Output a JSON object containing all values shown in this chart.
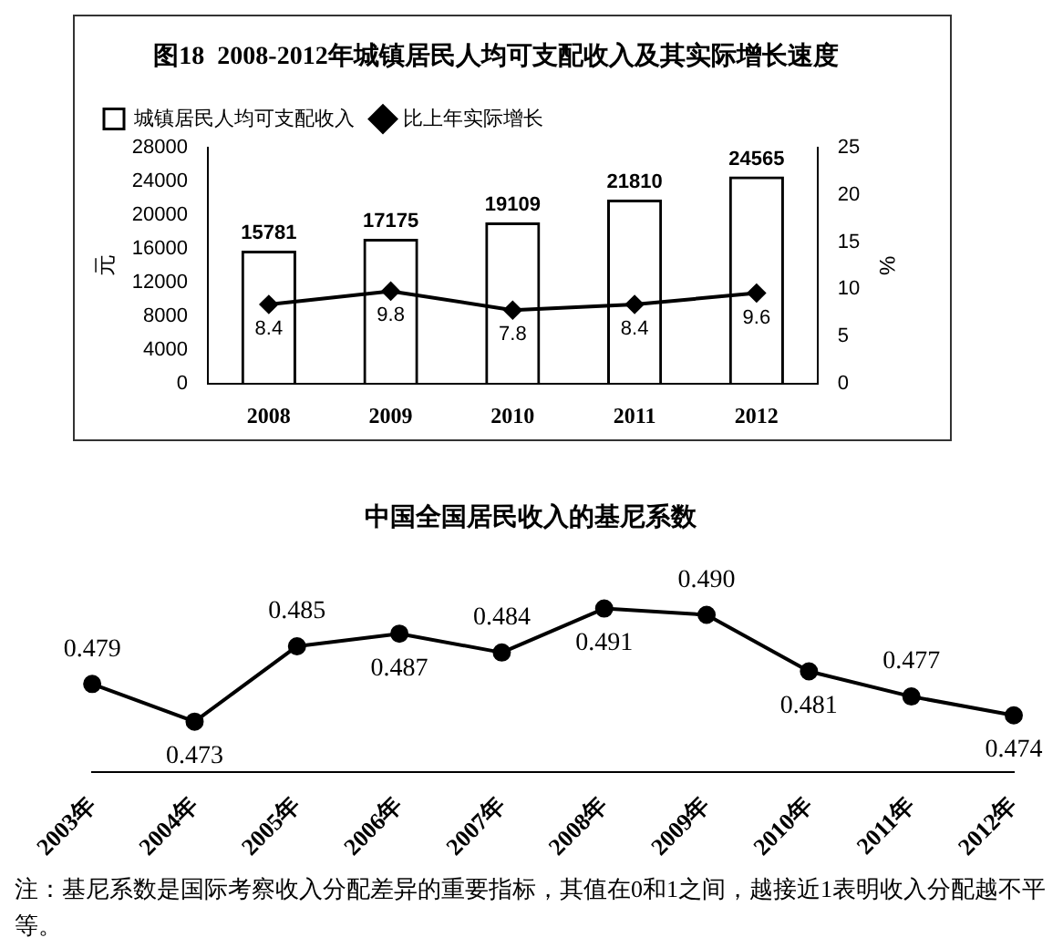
{
  "chart_data": [
    {
      "type": "bar",
      "title": "图18  2008-2012年城镇居民人均可支配收入及其实际增长速度",
      "ylabel": "元",
      "y2label": "%",
      "categories": [
        "2008",
        "2009",
        "2010",
        "2011",
        "2012"
      ],
      "series": [
        {
          "name": "城镇居民人均可支配收入",
          "color": "#000000",
          "values": [
            15781,
            17175,
            19109,
            21810,
            24565
          ]
        },
        {
          "name": "比上年实际增长",
          "type": "line",
          "axis": "y2",
          "color": "#000000",
          "values": [
            8.4,
            9.8,
            7.8,
            8.4,
            9.6
          ]
        }
      ],
      "ylim": [
        0,
        28000
      ],
      "yticks": [
        0,
        4000,
        8000,
        12000,
        16000,
        20000,
        24000,
        28000
      ],
      "y2lim": [
        0,
        25
      ],
      "y2ticks": [
        0,
        5,
        10,
        15,
        20,
        25
      ],
      "data_labels": true,
      "legend": "top left",
      "grid": false,
      "marker": "diamond"
    },
    {
      "type": "line",
      "title": "中国全国居民收入的基尼系数",
      "categories": [
        "2003年",
        "2004年",
        "2005年",
        "2006年",
        "2007年",
        "2008年",
        "2009年",
        "2010年",
        "2011年",
        "2012年"
      ],
      "series": [
        {
          "color": "#000000",
          "values": [
            0.479,
            0.473,
            0.485,
            0.487,
            0.484,
            0.491,
            0.49,
            0.481,
            0.477,
            0.474
          ],
          "value_labels": [
            "0.479",
            "0.473",
            "0.485",
            "0.487",
            "0.484",
            "0.491",
            "0.490",
            "0.481",
            "0.477",
            "0.474"
          ]
        }
      ],
      "tick_labels": "x",
      "grid": false,
      "marker": "circle",
      "annotations": [
        "注：基尼系数是国际考察收入分配差异的重要指标，其值在0和1之间，越接近1表明收入分配越不平等。"
      ]
    }
  ]
}
